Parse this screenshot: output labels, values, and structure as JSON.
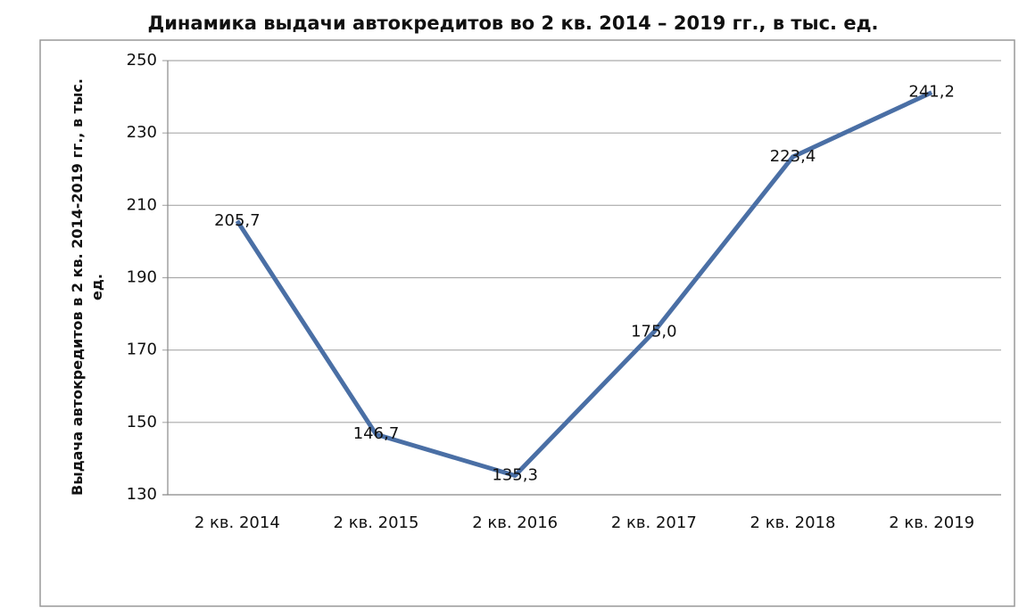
{
  "chart_data": {
    "type": "line",
    "title": "Динамика выдачи автокредитов во 2 кв. 2014 – 2019 гг., в тыс. ед.",
    "y_label": "Выдача  автокредитов  в 2 кв. 2014-2019 гг., в тыс. ед.",
    "categories": [
      "2 кв. 2014",
      "2 кв. 2015",
      "2 кв. 2016",
      "2 кв. 2017",
      "2 кв. 2018",
      "2 кв. 2019"
    ],
    "values": [
      205.7,
      146.7,
      135.3,
      175.0,
      223.4,
      241.2
    ],
    "value_labels": [
      "205,7",
      "146,7",
      "135,3",
      "175,0",
      "223,4",
      "241,2"
    ],
    "color": "#4a6fa5",
    "ylim": [
      130,
      250
    ],
    "yticks": [
      130,
      150,
      170,
      190,
      210,
      230,
      250
    ],
    "grid": true
  }
}
